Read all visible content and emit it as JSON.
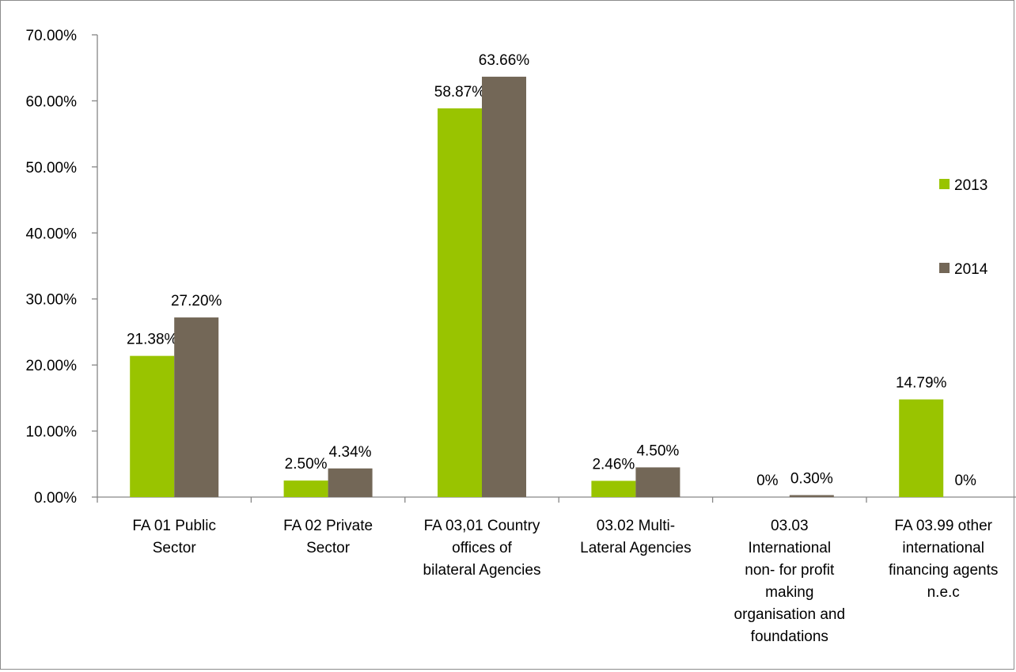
{
  "chart_data": {
    "type": "bar",
    "title": "",
    "xlabel": "",
    "ylabel": "",
    "ylim": [
      0,
      0.7
    ],
    "y_ticks": [
      "0.00%",
      "10.00%",
      "20.00%",
      "30.00%",
      "40.00%",
      "50.00%",
      "60.00%",
      "70.00%"
    ],
    "grid": false,
    "legend_position": "right",
    "categories": [
      [
        "FA 01 Public",
        "Sector"
      ],
      [
        "FA 02 Private",
        "Sector"
      ],
      [
        "FA 03,01 Country",
        "offices of",
        "bilateral Agencies"
      ],
      [
        "03.02 Multi-",
        "Lateral Agencies"
      ],
      [
        "03.03",
        "International",
        "non- for profit",
        "making",
        "organisation and",
        "foundations"
      ],
      [
        "FA 03.99 other",
        "international",
        "financing agents",
        "n.e.c"
      ]
    ],
    "series": [
      {
        "name": "2013",
        "color": "#99c400",
        "values": [
          0.2138,
          0.025,
          0.5887,
          0.0246,
          0,
          0.1479
        ],
        "labels": [
          "21.38%",
          "2.50%",
          "58.87%",
          "2.46%",
          "0%",
          "14.79%"
        ]
      },
      {
        "name": "2014",
        "color": "#736757",
        "values": [
          0.272,
          0.0434,
          0.6366,
          0.045,
          0.003,
          0
        ],
        "labels": [
          "27.20%",
          "4.34%",
          "63.66%",
          "4.50%",
          "0.30%",
          "0%"
        ]
      }
    ]
  }
}
